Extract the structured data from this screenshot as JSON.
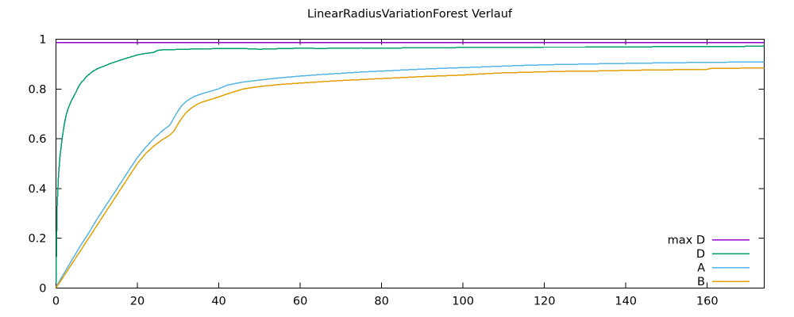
{
  "window": {
    "background": "#ffffff"
  },
  "chart_data": {
    "type": "line",
    "title": "LinearRadiusVariationForest Verlauf",
    "xlabel": "",
    "ylabel": "",
    "xlim": [
      0,
      174
    ],
    "ylim": [
      0,
      1
    ],
    "x_ticks": [
      0,
      20,
      40,
      60,
      80,
      100,
      120,
      140,
      160
    ],
    "x_tick_labels": [
      "0",
      "20",
      "40",
      "60",
      "80",
      "100",
      "120",
      "140",
      "160"
    ],
    "y_ticks": [
      0,
      0.2,
      0.4,
      0.6,
      0.8,
      1
    ],
    "y_tick_labels": [
      "0",
      "0.2",
      "0.4",
      "0.6",
      "0.8",
      "1"
    ],
    "grid": false,
    "legend_position": "inside-bottom-right",
    "border_color": "#000000",
    "text_color": "#000000",
    "series": [
      {
        "name": "max D",
        "color": "#9400d3",
        "points": [
          [
            0,
            0.987
          ],
          [
            174,
            0.987
          ]
        ]
      },
      {
        "name": "D",
        "color": "#009e73",
        "points": [
          [
            0,
            0.02
          ],
          [
            0.3,
            0.33
          ],
          [
            0.6,
            0.45
          ],
          [
            1,
            0.53
          ],
          [
            1.5,
            0.6
          ],
          [
            2,
            0.655
          ],
          [
            2.5,
            0.695
          ],
          [
            3,
            0.722
          ],
          [
            3.5,
            0.742
          ],
          [
            4,
            0.76
          ],
          [
            4.5,
            0.775
          ],
          [
            5,
            0.79
          ],
          [
            5.5,
            0.808
          ],
          [
            6,
            0.822
          ],
          [
            6.5,
            0.832
          ],
          [
            7,
            0.84
          ],
          [
            7.5,
            0.85
          ],
          [
            8,
            0.857
          ],
          [
            9,
            0.87
          ],
          [
            10,
            0.88
          ],
          [
            11,
            0.887
          ],
          [
            12,
            0.893
          ],
          [
            13,
            0.9
          ],
          [
            14,
            0.906
          ],
          [
            15,
            0.911
          ],
          [
            16,
            0.917
          ],
          [
            17,
            0.922
          ],
          [
            18,
            0.927
          ],
          [
            19,
            0.932
          ],
          [
            20,
            0.937
          ],
          [
            21,
            0.94
          ],
          [
            22,
            0.943
          ],
          [
            23,
            0.945
          ],
          [
            24,
            0.947
          ],
          [
            25,
            0.955
          ],
          [
            26,
            0.957
          ],
          [
            28,
            0.958
          ],
          [
            30,
            0.959
          ],
          [
            35,
            0.961
          ],
          [
            40,
            0.962
          ],
          [
            45,
            0.963
          ],
          [
            50,
            0.96
          ],
          [
            55,
            0.962
          ],
          [
            60,
            0.964
          ],
          [
            65,
            0.963
          ],
          [
            70,
            0.964
          ],
          [
            75,
            0.965
          ],
          [
            80,
            0.964
          ],
          [
            85,
            0.965
          ],
          [
            90,
            0.966
          ],
          [
            95,
            0.966
          ],
          [
            100,
            0.967
          ],
          [
            110,
            0.967
          ],
          [
            120,
            0.968
          ],
          [
            130,
            0.968
          ],
          [
            140,
            0.969
          ],
          [
            150,
            0.97
          ],
          [
            160,
            0.97
          ],
          [
            174,
            0.972
          ]
        ]
      },
      {
        "name": "A",
        "color": "#56b4e9",
        "points": [
          [
            0,
            0.005
          ],
          [
            2,
            0.06
          ],
          [
            4,
            0.115
          ],
          [
            6,
            0.17
          ],
          [
            8,
            0.22
          ],
          [
            10,
            0.275
          ],
          [
            12,
            0.325
          ],
          [
            14,
            0.375
          ],
          [
            16,
            0.425
          ],
          [
            18,
            0.475
          ],
          [
            20,
            0.525
          ],
          [
            22,
            0.565
          ],
          [
            24,
            0.6
          ],
          [
            26,
            0.63
          ],
          [
            27,
            0.643
          ],
          [
            28,
            0.655
          ],
          [
            29,
            0.685
          ],
          [
            30,
            0.712
          ],
          [
            31,
            0.735
          ],
          [
            32,
            0.75
          ],
          [
            33,
            0.761
          ],
          [
            34,
            0.77
          ],
          [
            35,
            0.776
          ],
          [
            36,
            0.782
          ],
          [
            38,
            0.791
          ],
          [
            40,
            0.801
          ],
          [
            42,
            0.815
          ],
          [
            44,
            0.822
          ],
          [
            46,
            0.828
          ],
          [
            48,
            0.832
          ],
          [
            50,
            0.836
          ],
          [
            55,
            0.845
          ],
          [
            60,
            0.852
          ],
          [
            65,
            0.858
          ],
          [
            70,
            0.863
          ],
          [
            75,
            0.868
          ],
          [
            80,
            0.872
          ],
          [
            85,
            0.876
          ],
          [
            90,
            0.88
          ],
          [
            95,
            0.883
          ],
          [
            100,
            0.886
          ],
          [
            105,
            0.889
          ],
          [
            110,
            0.892
          ],
          [
            115,
            0.895
          ],
          [
            120,
            0.897
          ],
          [
            125,
            0.899
          ],
          [
            130,
            0.9
          ],
          [
            135,
            0.902
          ],
          [
            140,
            0.903
          ],
          [
            145,
            0.904
          ],
          [
            150,
            0.905
          ],
          [
            155,
            0.906
          ],
          [
            160,
            0.907
          ],
          [
            165,
            0.9075
          ],
          [
            170,
            0.908
          ],
          [
            174,
            0.908
          ]
        ]
      },
      {
        "name": "B",
        "color": "#e69f00",
        "points": [
          [
            0,
            0.0
          ],
          [
            2,
            0.05
          ],
          [
            4,
            0.1
          ],
          [
            6,
            0.15
          ],
          [
            8,
            0.2
          ],
          [
            10,
            0.25
          ],
          [
            12,
            0.3
          ],
          [
            14,
            0.35
          ],
          [
            16,
            0.4
          ],
          [
            18,
            0.45
          ],
          [
            20,
            0.5
          ],
          [
            22,
            0.54
          ],
          [
            24,
            0.57
          ],
          [
            26,
            0.595
          ],
          [
            27,
            0.605
          ],
          [
            28,
            0.615
          ],
          [
            29,
            0.632
          ],
          [
            30,
            0.66
          ],
          [
            31,
            0.685
          ],
          [
            32,
            0.705
          ],
          [
            33,
            0.72
          ],
          [
            34,
            0.732
          ],
          [
            35,
            0.741
          ],
          [
            36,
            0.748
          ],
          [
            38,
            0.758
          ],
          [
            40,
            0.768
          ],
          [
            42,
            0.78
          ],
          [
            44,
            0.79
          ],
          [
            46,
            0.8
          ],
          [
            48,
            0.805
          ],
          [
            50,
            0.81
          ],
          [
            55,
            0.818
          ],
          [
            60,
            0.824
          ],
          [
            65,
            0.829
          ],
          [
            70,
            0.834
          ],
          [
            75,
            0.838
          ],
          [
            80,
            0.842
          ],
          [
            85,
            0.846
          ],
          [
            90,
            0.85
          ],
          [
            95,
            0.853
          ],
          [
            100,
            0.856
          ],
          [
            105,
            0.861
          ],
          [
            110,
            0.865
          ],
          [
            115,
            0.867
          ],
          [
            120,
            0.869
          ],
          [
            125,
            0.871
          ],
          [
            130,
            0.872
          ],
          [
            135,
            0.873
          ],
          [
            140,
            0.875
          ],
          [
            145,
            0.876
          ],
          [
            150,
            0.877
          ],
          [
            155,
            0.878
          ],
          [
            160,
            0.879
          ],
          [
            161,
            0.883
          ],
          [
            165,
            0.883
          ],
          [
            170,
            0.884
          ],
          [
            174,
            0.884
          ]
        ]
      }
    ]
  }
}
